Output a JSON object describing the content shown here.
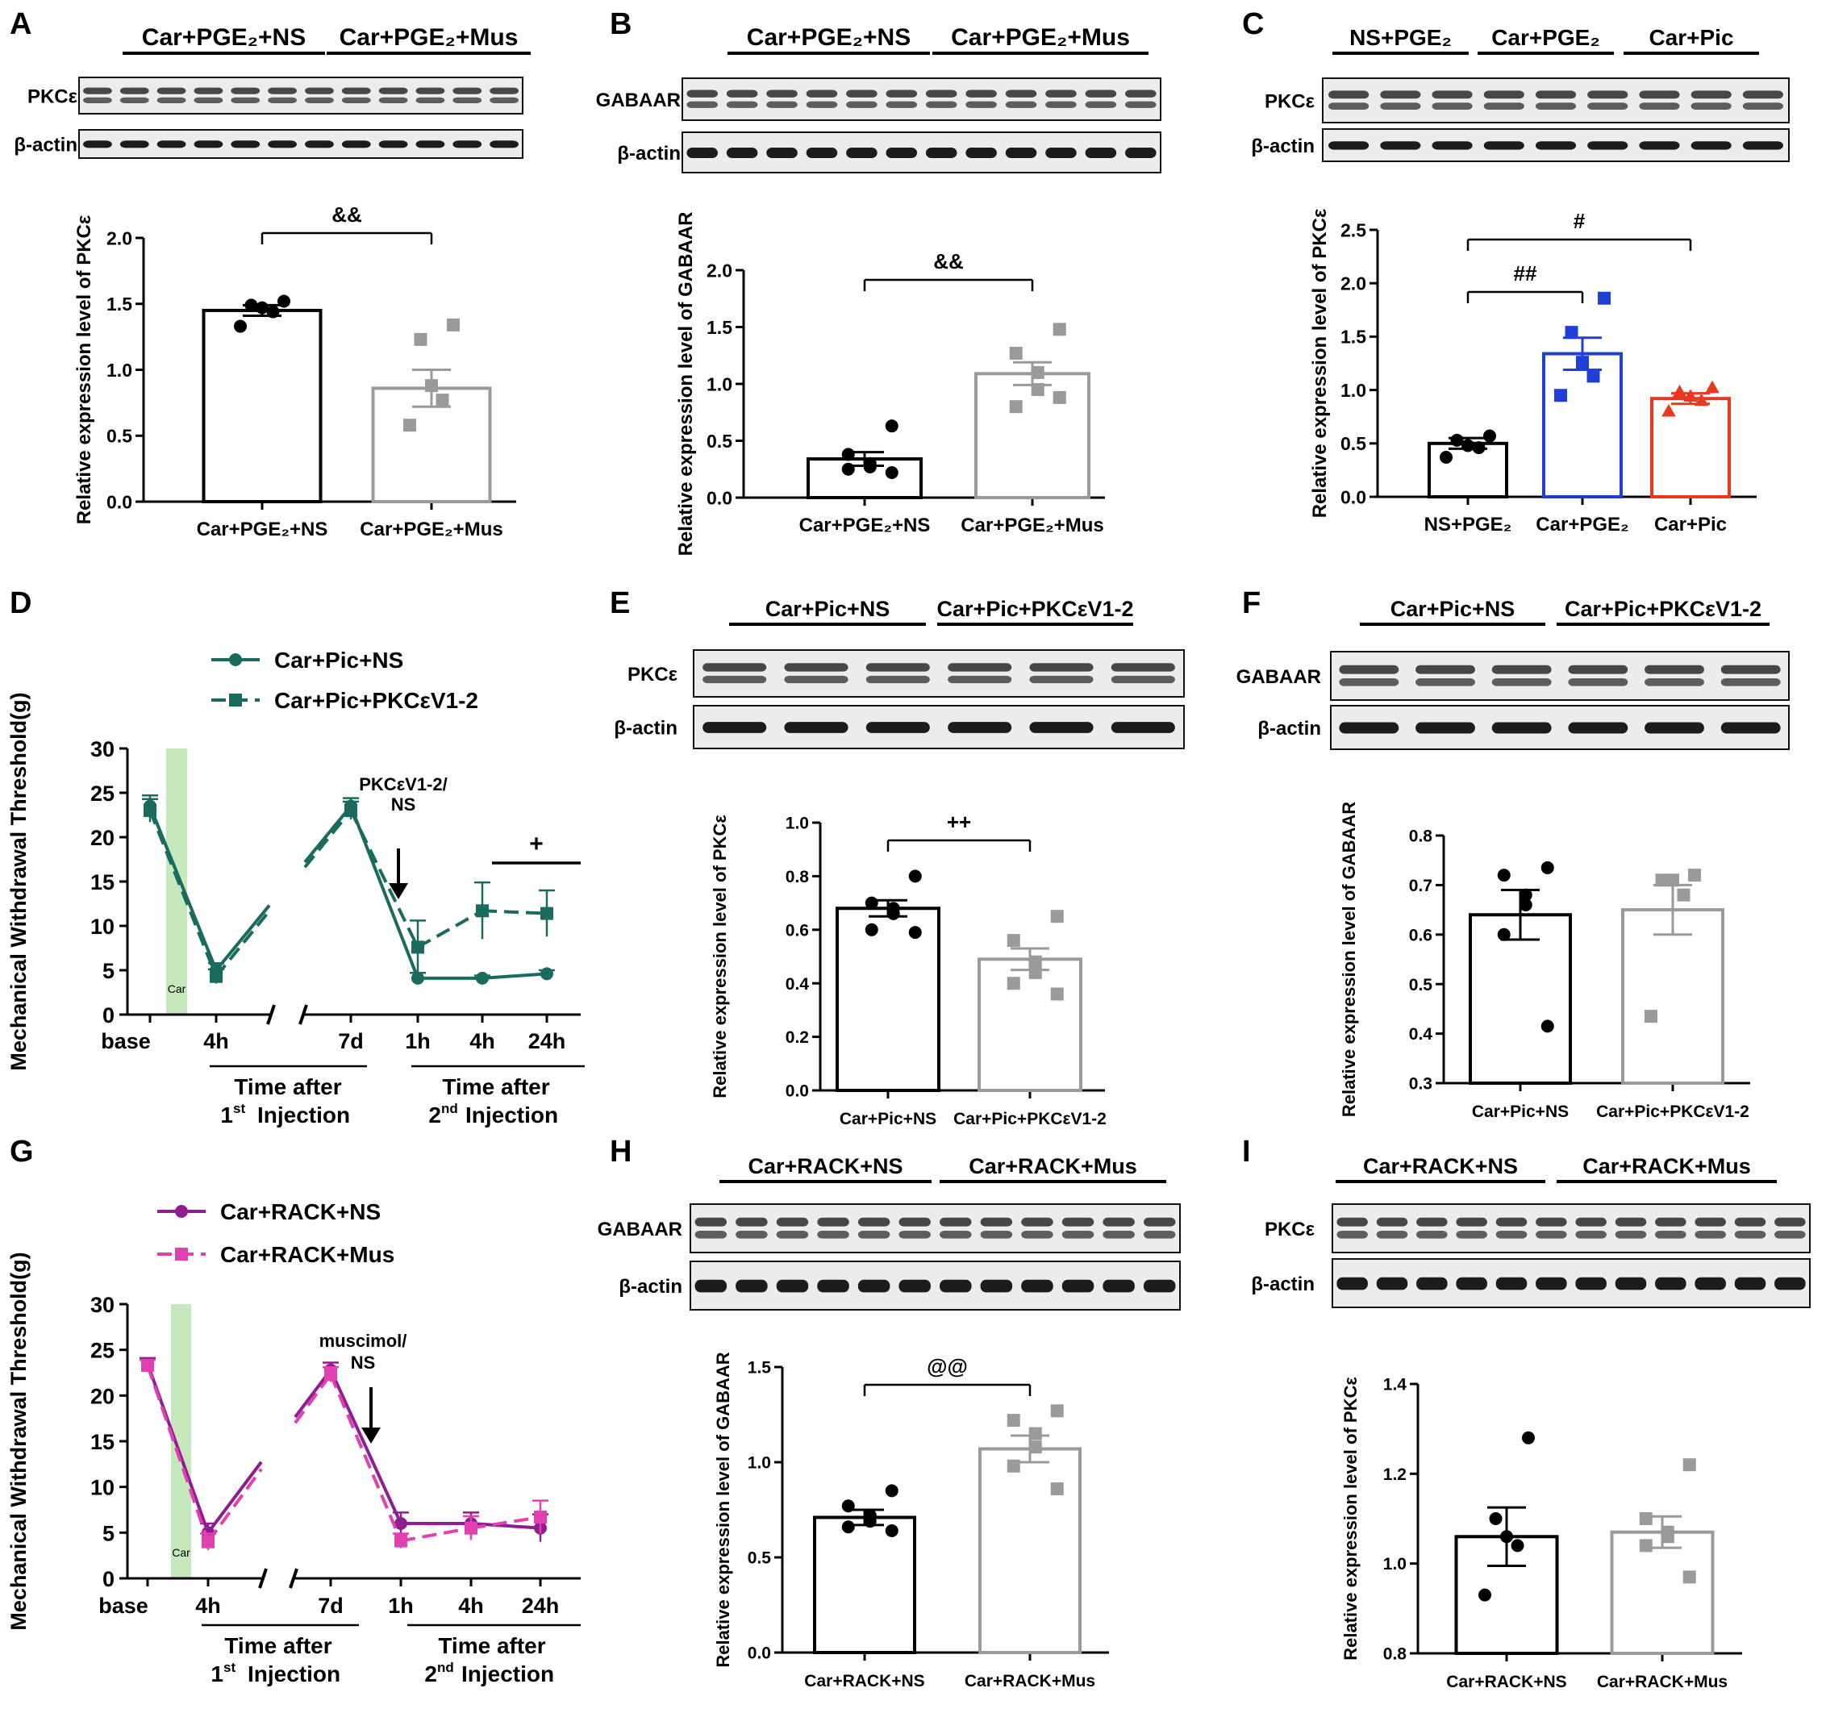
{
  "figure": {
    "colors": {
      "black": "#000000",
      "gray": "#9a9a9a",
      "blue": "#1f3fd6",
      "red": "#e8391d",
      "teal": "#1a6b5e",
      "purple": "#8e1e8f",
      "pink": "#e040b0",
      "car_band": "#c5e8bd"
    },
    "blots": {
      "A": {
        "groups": [
          "Car+PGE₂+NS",
          "Car+PGE₂+Mus"
        ],
        "rows": [
          "PKCε",
          "β-actin"
        ],
        "lanes_per_group": 6
      },
      "B": {
        "groups": [
          "Car+PGE₂+NS",
          "Car+PGE₂+Mus"
        ],
        "rows": [
          "GABAAR",
          "β-actin"
        ],
        "lanes_per_group": 6
      },
      "C": {
        "groups": [
          "NS+PGE₂",
          "Car+PGE₂",
          "Car+Pic"
        ],
        "rows": [
          "PKCε",
          "β-actin"
        ],
        "lanes_per_group": 3
      },
      "E": {
        "groups": [
          "Car+Pic+NS",
          "Car+Pic+PKCεV1-2"
        ],
        "rows": [
          "PKCε",
          "β-actin"
        ],
        "lanes_per_group": 3
      },
      "F": {
        "groups": [
          "Car+Pic+NS",
          "Car+Pic+PKCεV1-2"
        ],
        "rows": [
          "GABAAR",
          "β-actin"
        ],
        "lanes_per_group": 3
      },
      "H": {
        "groups": [
          "Car+RACK+NS",
          "Car+RACK+Mus"
        ],
        "rows": [
          "GABAAR",
          "β-actin"
        ],
        "lanes_per_group": 6
      },
      "I": {
        "groups": [
          "Car+RACK+NS",
          "Car+RACK+Mus"
        ],
        "rows": [
          "PKCε",
          "β-actin"
        ],
        "lanes_per_group": 6
      }
    }
  },
  "chart_data": [
    {
      "panel": "A",
      "type": "bar",
      "ylabel": "Relative expression level of PKCε",
      "ylim": [
        0,
        2.0
      ],
      "yticks": [
        "0.0",
        "0.5",
        "1.0",
        "1.5",
        "2.0"
      ],
      "categories": [
        "Car+PGE₂+NS",
        "Car+PGE₂+Mus"
      ],
      "values": [
        1.45,
        0.86
      ],
      "sem": [
        0.04,
        0.14
      ],
      "points": [
        [
          1.52,
          1.49,
          1.47,
          1.44,
          1.33
        ],
        [
          1.34,
          1.23,
          0.88,
          0.77,
          0.58
        ]
      ],
      "bar_colors": [
        "black",
        "gray"
      ],
      "markers": [
        "circle",
        "square"
      ],
      "significance": [
        {
          "from": 0,
          "to": 1,
          "label": "&&"
        }
      ]
    },
    {
      "panel": "B",
      "type": "bar",
      "ylabel": "Relative expression level of GABAAR",
      "ylim": [
        0,
        2.0
      ],
      "yticks": [
        "0.0",
        "0.5",
        "1.0",
        "1.5",
        "2.0"
      ],
      "categories": [
        "Car+PGE₂+NS",
        "Car+PGE₂+Mus"
      ],
      "values": [
        0.34,
        1.09
      ],
      "sem": [
        0.06,
        0.1
      ],
      "points": [
        [
          0.63,
          0.38,
          0.3,
          0.27,
          0.25,
          0.22
        ],
        [
          1.48,
          1.27,
          1.1,
          0.95,
          0.8,
          0.88
        ]
      ],
      "bar_colors": [
        "black",
        "gray"
      ],
      "markers": [
        "circle",
        "square"
      ],
      "significance": [
        {
          "from": 0,
          "to": 1,
          "label": "&&"
        }
      ]
    },
    {
      "panel": "C",
      "type": "bar",
      "ylabel": "Relative expression level of PKCε",
      "ylim": [
        0,
        2.5
      ],
      "yticks": [
        "0.0",
        "0.5",
        "1.0",
        "1.5",
        "2.0",
        "2.5"
      ],
      "categories": [
        "NS+PGE₂",
        "Car+PGE₂",
        "Car+Pic"
      ],
      "values": [
        0.5,
        1.34,
        0.92
      ],
      "sem": [
        0.05,
        0.15,
        0.05
      ],
      "points": [
        [
          0.57,
          0.53,
          0.48,
          0.46,
          0.37
        ],
        [
          1.86,
          1.54,
          1.26,
          1.13,
          0.95
        ],
        [
          1.02,
          0.98,
          0.94,
          0.9,
          0.8
        ]
      ],
      "bar_colors": [
        "black",
        "blue",
        "red"
      ],
      "markers": [
        "circle",
        "square",
        "triangle"
      ],
      "significance": [
        {
          "from": 0,
          "to": 1,
          "label": "##"
        },
        {
          "from": 0,
          "to": 2,
          "label": "#"
        }
      ]
    },
    {
      "panel": "D",
      "type": "line",
      "ylabel": "Mechanical Withdrawal Threshold(g)",
      "ylim": [
        0,
        30
      ],
      "yticks": [
        "0",
        "5",
        "10",
        "15",
        "20",
        "25",
        "30"
      ],
      "xticklabels": [
        "base",
        "4h",
        "7d",
        "1h",
        "4h",
        "24h"
      ],
      "xgroups": [
        [
          "Time after",
          "1",
          "st",
          "Injection"
        ],
        [
          "Time after",
          "2",
          "nd",
          "Injection"
        ]
      ],
      "car_label": "Car",
      "annotation": [
        "PKCεV1-2/",
        "NS"
      ],
      "significance": "+",
      "series": [
        {
          "name": "Car+Pic+NS",
          "values": [
            23.5,
            5.0,
            23.5,
            4.1,
            4.1,
            4.6
          ],
          "err": [
            1.2,
            0.8,
            0.9,
            0.6,
            0.3,
            0.4
          ],
          "color": "teal",
          "dash": false,
          "marker": "circle"
        },
        {
          "name": "Car+Pic+PKCεV1-2",
          "values": [
            23.0,
            4.3,
            23.0,
            7.6,
            11.7,
            11.4
          ],
          "err": [
            1.3,
            0.8,
            1.0,
            3.0,
            3.2,
            2.6
          ],
          "color": "teal",
          "dash": true,
          "marker": "square"
        }
      ]
    },
    {
      "panel": "E",
      "type": "bar",
      "ylabel": "Relative expression level of PKCε",
      "ylim": [
        0,
        1.0
      ],
      "yticks": [
        "0.0",
        "0.2",
        "0.4",
        "0.6",
        "0.8",
        "1.0"
      ],
      "categories": [
        "Car+Pic+NS",
        "Car+Pic+PKCεV1-2"
      ],
      "values": [
        0.68,
        0.49
      ],
      "sem": [
        0.03,
        0.04
      ],
      "points": [
        [
          0.8,
          0.7,
          0.68,
          0.66,
          0.6,
          0.59
        ],
        [
          0.65,
          0.56,
          0.48,
          0.44,
          0.4,
          0.36
        ]
      ],
      "bar_colors": [
        "black",
        "gray"
      ],
      "markers": [
        "circle",
        "square"
      ],
      "significance": [
        {
          "from": 0,
          "to": 1,
          "label": "++"
        }
      ]
    },
    {
      "panel": "F",
      "type": "bar",
      "ylabel": "Relative expression level of GABAAR",
      "ylim": [
        0.3,
        0.8
      ],
      "yticks": [
        "0.3",
        "0.4",
        "0.5",
        "0.6",
        "0.7",
        "0.8"
      ],
      "categories": [
        "Car+Pic+NS",
        "Car+Pic+PKCεV1-2"
      ],
      "values": [
        0.64,
        0.65
      ],
      "sem": [
        0.05,
        0.05
      ],
      "points": [
        [
          0.735,
          0.72,
          0.68,
          0.66,
          0.6,
          0.415
        ],
        [
          0.72,
          0.71,
          0.71,
          0.68,
          0.435
        ]
      ],
      "bar_colors": [
        "black",
        "gray"
      ],
      "markers": [
        "circle",
        "square"
      ],
      "significance": []
    },
    {
      "panel": "G",
      "type": "line",
      "ylabel": "Mechanical Withdrawal Threshold(g)",
      "ylim": [
        0,
        30
      ],
      "yticks": [
        "0",
        "5",
        "10",
        "15",
        "20",
        "25",
        "30"
      ],
      "xticklabels": [
        "base",
        "4h",
        "7d",
        "1h",
        "4h",
        "24h"
      ],
      "xgroups": [
        [
          "Time after",
          "1",
          "st",
          "Injection"
        ],
        [
          "Time after",
          "2",
          "nd",
          "Injection"
        ]
      ],
      "car_label": "Car",
      "annotation": [
        "muscimol/",
        "NS"
      ],
      "significance": "",
      "series": [
        {
          "name": "Car+RACK+NS",
          "values": [
            23.5,
            5.0,
            22.8,
            6.0,
            6.0,
            5.5
          ],
          "err": [
            0.6,
            1.0,
            0.8,
            1.2,
            1.2,
            1.5
          ],
          "color": "purple",
          "dash": false,
          "marker": "circle"
        },
        {
          "name": "Car+RACK+Mus",
          "values": [
            23.3,
            4.0,
            22.3,
            4.1,
            5.5,
            6.7
          ],
          "err": [
            0.6,
            0.9,
            0.8,
            0.8,
            1.3,
            1.8
          ],
          "color": "pink",
          "dash": true,
          "marker": "square"
        }
      ]
    },
    {
      "panel": "H",
      "type": "bar",
      "ylabel": "Relative expression level of GABAAR",
      "ylim": [
        0,
        1.5
      ],
      "yticks": [
        "0.0",
        "0.5",
        "1.0",
        "1.5"
      ],
      "categories": [
        "Car+RACK+NS",
        "Car+RACK+Mus"
      ],
      "values": [
        0.71,
        1.07
      ],
      "sem": [
        0.04,
        0.07
      ],
      "points": [
        [
          0.85,
          0.77,
          0.72,
          0.69,
          0.66,
          0.64
        ],
        [
          1.27,
          1.22,
          1.15,
          1.08,
          0.98,
          0.86
        ]
      ],
      "bar_colors": [
        "black",
        "gray"
      ],
      "markers": [
        "circle",
        "square"
      ],
      "significance": [
        {
          "from": 0,
          "to": 1,
          "label": "@@"
        }
      ]
    },
    {
      "panel": "I",
      "type": "bar",
      "ylabel": "Relative expression level of PKCε",
      "ylim": [
        0.8,
        1.4
      ],
      "yticks": [
        "0.8",
        "1.0",
        "1.2",
        "1.4"
      ],
      "categories": [
        "Car+RACK+NS",
        "Car+RACK+Mus"
      ],
      "values": [
        1.06,
        1.07
      ],
      "sem": [
        0.065,
        0.035
      ],
      "points": [
        [
          1.28,
          1.1,
          1.06,
          1.04,
          0.93
        ],
        [
          1.22,
          1.1,
          1.07,
          1.06,
          1.04,
          0.97
        ]
      ],
      "bar_colors": [
        "black",
        "gray"
      ],
      "markers": [
        "circle",
        "square"
      ],
      "significance": []
    }
  ]
}
